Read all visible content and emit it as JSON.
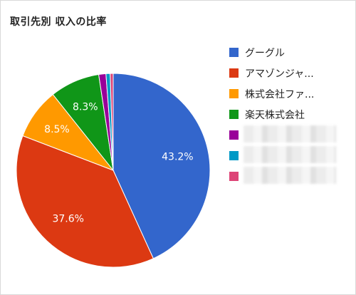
{
  "chart_data": {
    "type": "pie",
    "title": "取引先別 収入の比率",
    "slices": [
      {
        "label": "グーグル",
        "value": 43.2,
        "value_label": "43.2%",
        "color": "#3366cc"
      },
      {
        "label": "アマゾンジャ...",
        "value": 37.6,
        "value_label": "37.6%",
        "color": "#dc3912"
      },
      {
        "label": "株式会社ファ...",
        "value": 8.5,
        "value_label": "8.5%",
        "color": "#ff9900"
      },
      {
        "label": "楽天株式会社",
        "value": 8.3,
        "value_label": "8.3%",
        "color": "#109618"
      },
      {
        "label": "",
        "value": 1.2,
        "value_label": "",
        "color": "#990099"
      },
      {
        "label": "",
        "value": 0.7,
        "value_label": "",
        "color": "#0099c6"
      },
      {
        "label": "",
        "value": 0.5,
        "value_label": "",
        "color": "#dd4477"
      }
    ],
    "legend_position": "right",
    "start_angle_deg": 0,
    "direction": "clockwise"
  }
}
